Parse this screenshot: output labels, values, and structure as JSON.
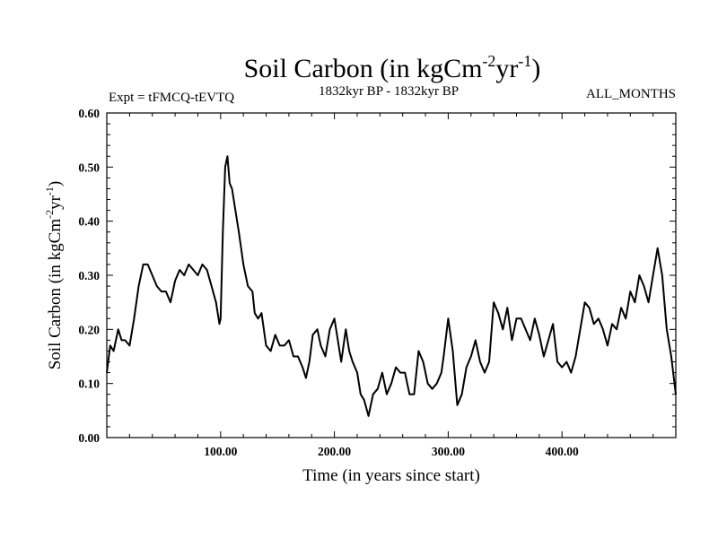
{
  "chart_data": {
    "type": "line",
    "title": {
      "main": "Soil Carbon (in kgCm",
      "sup1": "-2",
      "mid": "yr",
      "sup2": "-1",
      "end": ")"
    },
    "subtitle_left": "Expt = tFMCQ-tEVTQ",
    "subtitle_center": "1832kyr BP - 1832kyr BP",
    "subtitle_right": "ALL_MONTHS",
    "xlabel": "Time (in years since start)",
    "ylabel": {
      "main": "Soil Carbon (in kgCm",
      "sup1": "-2",
      "mid": "yr",
      "sup2": "-1",
      "end": ")"
    },
    "xlim": [
      0,
      500
    ],
    "ylim": [
      0,
      0.6
    ],
    "x_ticks": [
      100,
      200,
      300,
      400
    ],
    "x_tick_labels": [
      "100.00",
      "200.00",
      "300.00",
      "400.00"
    ],
    "y_ticks": [
      0,
      0.1,
      0.2,
      0.3,
      0.4,
      0.5,
      0.6
    ],
    "y_tick_labels": [
      "0.00",
      "0.10",
      "0.20",
      "0.30",
      "0.40",
      "0.50",
      "0.60"
    ],
    "grid": false,
    "series": [
      {
        "name": "Soil Carbon",
        "x": [
          0,
          3,
          6,
          10,
          13,
          16,
          20,
          24,
          28,
          32,
          36,
          40,
          44,
          48,
          52,
          56,
          60,
          64,
          68,
          72,
          76,
          80,
          84,
          88,
          92,
          96,
          99,
          100,
          102,
          104,
          106,
          108,
          110,
          113,
          116,
          120,
          124,
          128,
          130,
          133,
          136,
          140,
          144,
          148,
          152,
          156,
          160,
          164,
          168,
          172,
          175,
          178,
          181,
          185,
          188,
          192,
          196,
          200,
          203,
          206,
          210,
          213,
          216,
          220,
          223,
          226,
          230,
          234,
          238,
          242,
          246,
          250,
          254,
          258,
          262,
          266,
          270,
          274,
          278,
          282,
          286,
          290,
          294,
          296,
          300,
          304,
          308,
          312,
          316,
          320,
          324,
          328,
          332,
          336,
          340,
          344,
          348,
          352,
          356,
          360,
          364,
          368,
          372,
          376,
          380,
          384,
          388,
          392,
          396,
          400,
          404,
          408,
          412,
          416,
          420,
          424,
          428,
          432,
          436,
          440,
          444,
          448,
          452,
          456,
          460,
          464,
          468,
          472,
          476,
          480,
          484,
          488,
          492,
          496,
          500
        ],
        "values": [
          0.12,
          0.17,
          0.16,
          0.2,
          0.18,
          0.18,
          0.17,
          0.22,
          0.28,
          0.32,
          0.32,
          0.3,
          0.28,
          0.27,
          0.27,
          0.25,
          0.29,
          0.31,
          0.3,
          0.32,
          0.31,
          0.3,
          0.32,
          0.31,
          0.28,
          0.25,
          0.21,
          0.22,
          0.38,
          0.5,
          0.52,
          0.47,
          0.46,
          0.42,
          0.38,
          0.32,
          0.28,
          0.27,
          0.23,
          0.22,
          0.23,
          0.17,
          0.16,
          0.19,
          0.17,
          0.17,
          0.18,
          0.15,
          0.15,
          0.13,
          0.11,
          0.14,
          0.19,
          0.2,
          0.17,
          0.15,
          0.2,
          0.22,
          0.18,
          0.14,
          0.2,
          0.16,
          0.14,
          0.12,
          0.08,
          0.07,
          0.04,
          0.08,
          0.09,
          0.12,
          0.08,
          0.1,
          0.13,
          0.12,
          0.12,
          0.08,
          0.08,
          0.16,
          0.14,
          0.1,
          0.09,
          0.1,
          0.12,
          0.15,
          0.22,
          0.16,
          0.06,
          0.08,
          0.13,
          0.15,
          0.18,
          0.14,
          0.12,
          0.14,
          0.25,
          0.23,
          0.2,
          0.24,
          0.18,
          0.22,
          0.22,
          0.2,
          0.18,
          0.22,
          0.19,
          0.15,
          0.18,
          0.21,
          0.14,
          0.13,
          0.14,
          0.12,
          0.15,
          0.2,
          0.25,
          0.24,
          0.21,
          0.22,
          0.2,
          0.17,
          0.21,
          0.2,
          0.24,
          0.22,
          0.27,
          0.25,
          0.3,
          0.28,
          0.25,
          0.3,
          0.35,
          0.3,
          0.2,
          0.15,
          0.08
        ]
      }
    ]
  }
}
